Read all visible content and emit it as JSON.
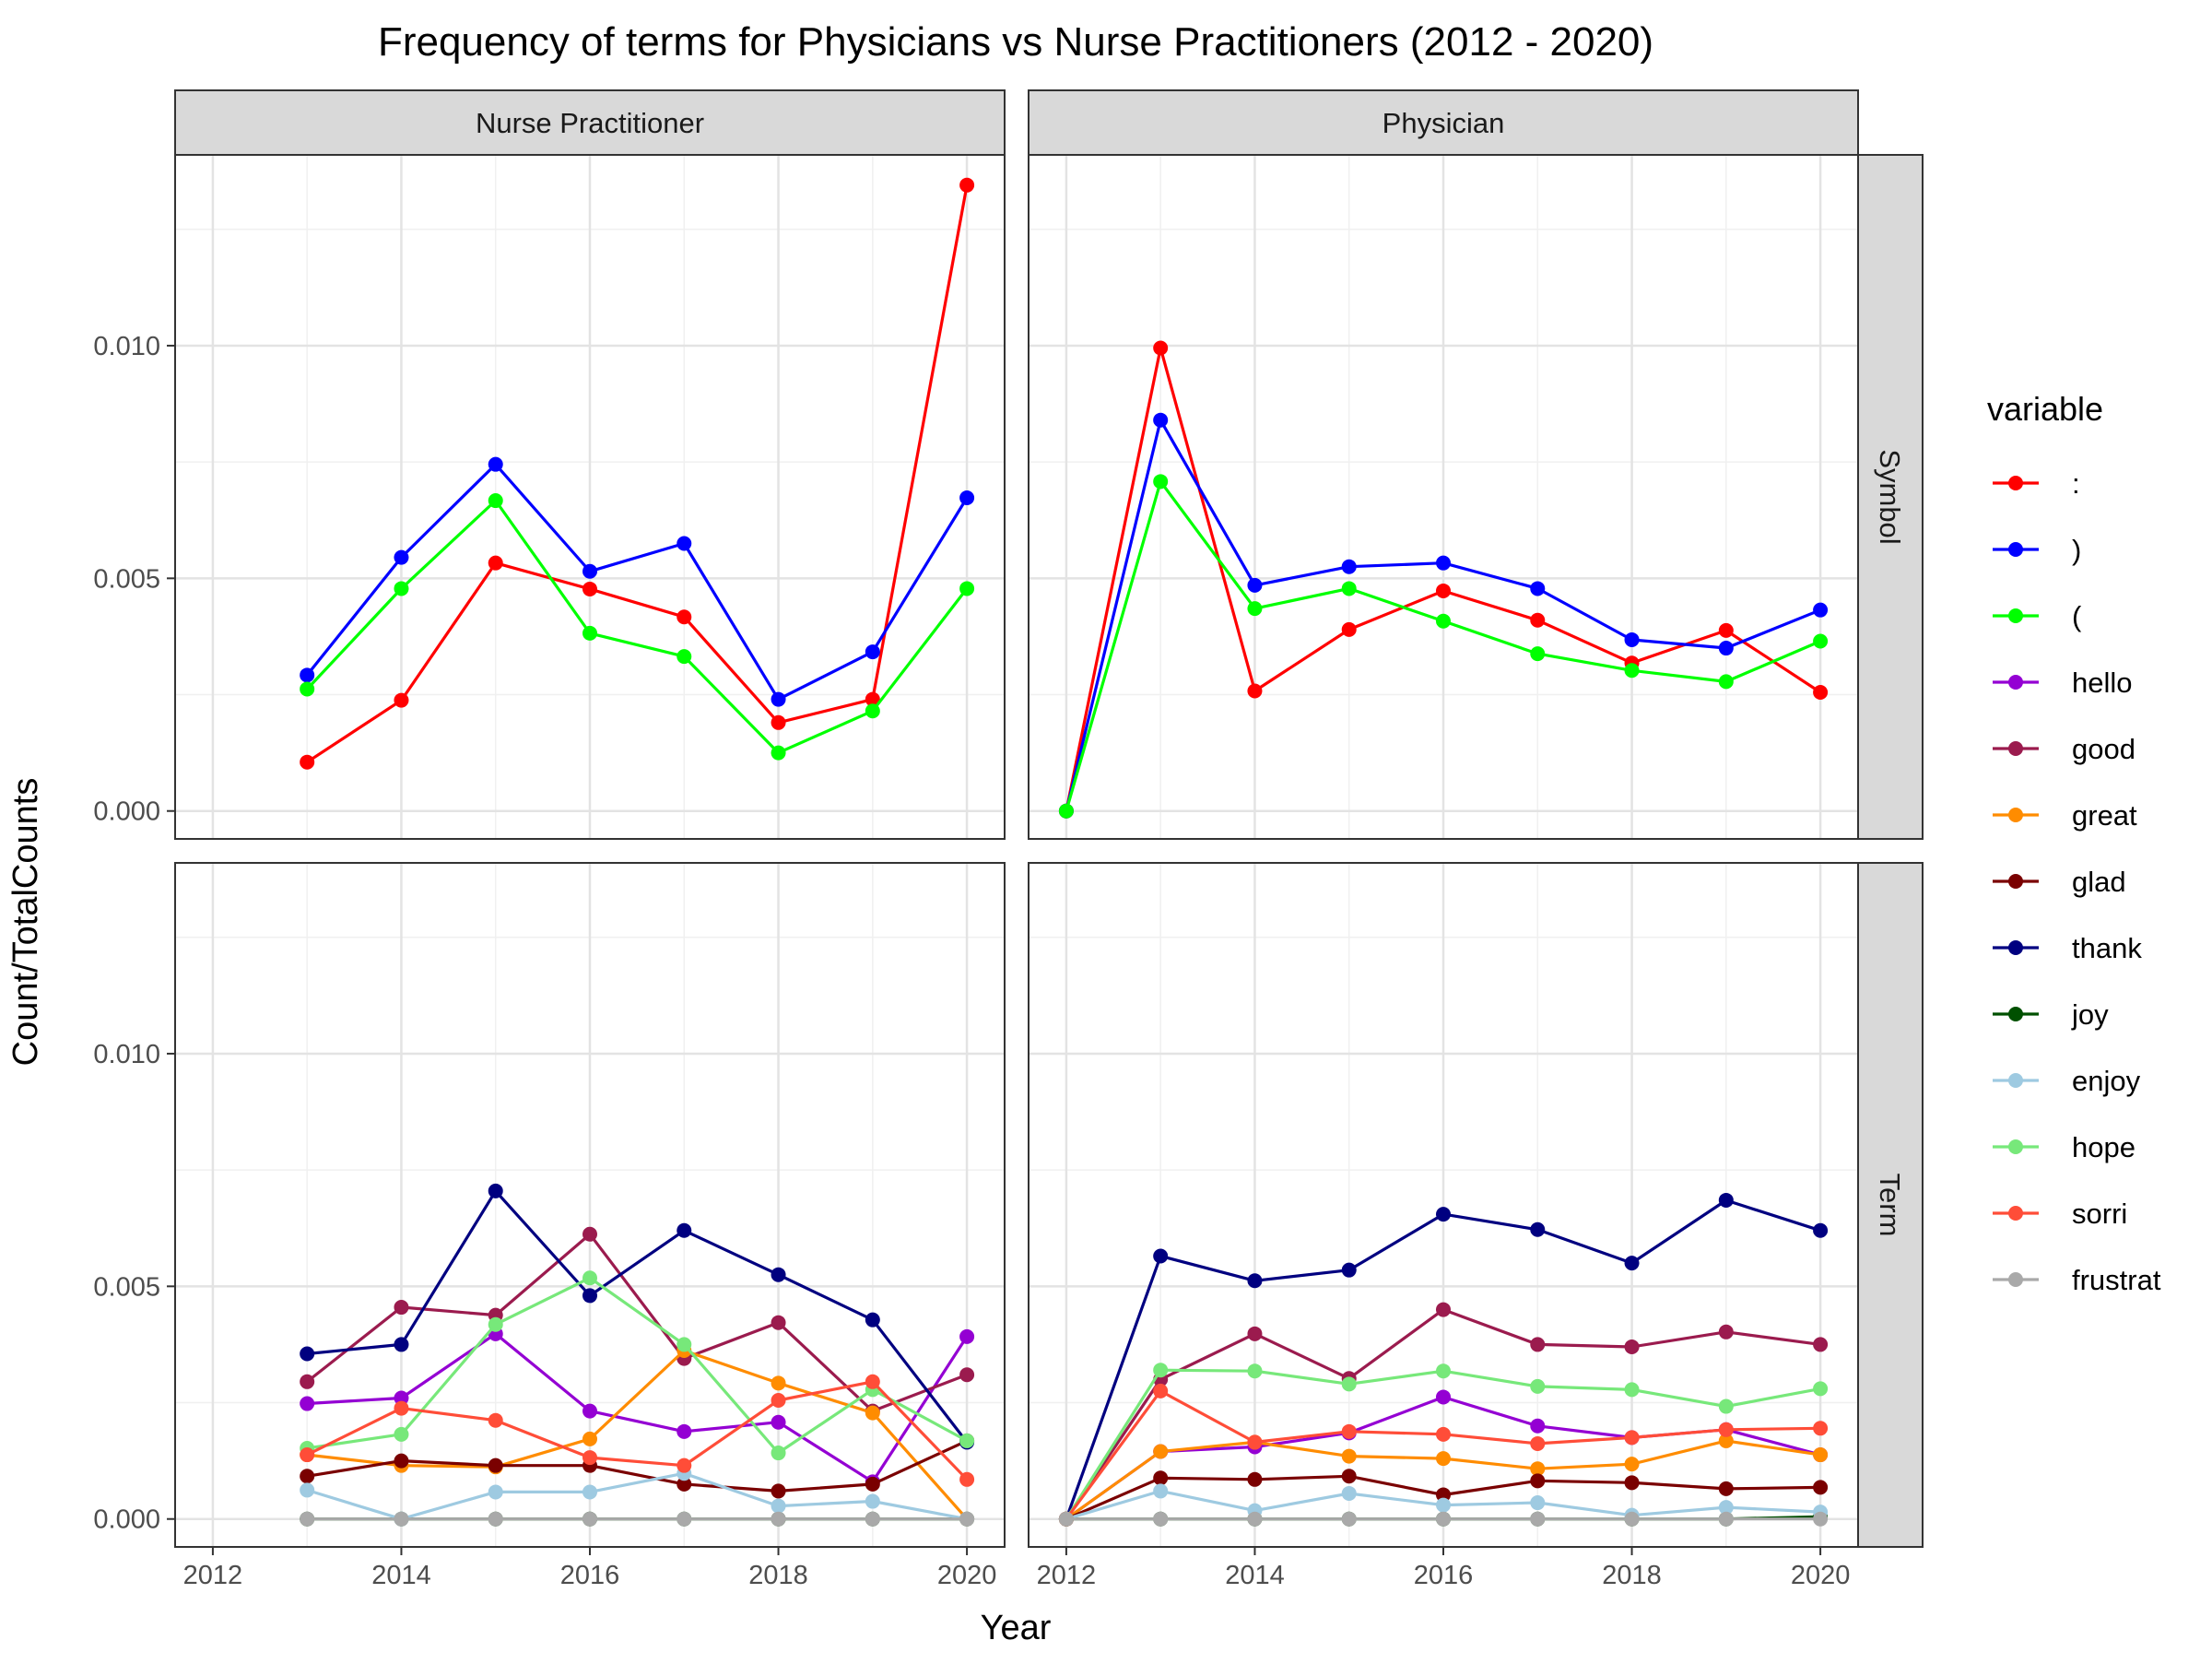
{
  "chart_data": {
    "type": "line",
    "title": "Frequency of terms for Physicians vs Nurse Practitioners (2012 - 2020)",
    "xlabel": "Year",
    "ylabel": "Count/TotalCounts",
    "xlim": [
      2011.6,
      2020.4
    ],
    "ylim": [
      -0.0006,
      0.0141
    ],
    "x_ticks": [
      2012,
      2014,
      2016,
      2018,
      2020
    ],
    "x_tick_labels": [
      "2012",
      "2014",
      "2016",
      "2018",
      "2020"
    ],
    "y_ticks": [
      0,
      0.005,
      0.01
    ],
    "y_tick_labels": [
      "0.000",
      "0.005",
      "0.010"
    ],
    "grid": true,
    "legend": {
      "title": "variable",
      "position": "right"
    },
    "facet_columns": [
      "Nurse Practitioner",
      "Physician"
    ],
    "facet_rows": [
      "Symbol",
      "Term"
    ],
    "series_order": [
      ":",
      ")",
      "(",
      "hello",
      "good",
      "great",
      "glad",
      "thank",
      "joy",
      "enjoy",
      "hope",
      "sorri",
      "frustrat"
    ],
    "colors": {
      ":": "#ff0000",
      ")": "#0000ff",
      "(": "#00ff00",
      "hello": "#9400d3",
      "good": "#9b1b4e",
      "great": "#ff8c00",
      "glad": "#7a0000",
      "thank": "#000080",
      "joy": "#005000",
      "enjoy": "#9ecae1",
      "hope": "#77e87a",
      "sorri": "#ff4d38",
      "frustrat": "#a9a9a9"
    },
    "panels": [
      {
        "col": "Nurse Practitioner",
        "row": "Symbol",
        "series": [
          {
            "name": ":",
            "x": [
              2013,
              2014,
              2015,
              2016,
              2017,
              2018,
              2019,
              2020
            ],
            "values": [
              0.00105,
              0.00238,
              0.00533,
              0.00477,
              0.00417,
              0.0019,
              0.0024,
              0.01345
            ]
          },
          {
            "name": ")",
            "x": [
              2013,
              2014,
              2015,
              2016,
              2017,
              2018,
              2019,
              2020
            ],
            "values": [
              0.00292,
              0.00545,
              0.00745,
              0.00515,
              0.00575,
              0.0024,
              0.00342,
              0.00673
            ]
          },
          {
            "name": "(",
            "x": [
              2013,
              2014,
              2015,
              2016,
              2017,
              2018,
              2019,
              2020
            ],
            "values": [
              0.00262,
              0.00478,
              0.00667,
              0.00382,
              0.00332,
              0.00125,
              0.00215,
              0.00478
            ]
          }
        ]
      },
      {
        "col": "Physician",
        "row": "Symbol",
        "series": [
          {
            "name": ":",
            "x": [
              2012,
              2013,
              2014,
              2015,
              2016,
              2017,
              2018,
              2019,
              2020
            ],
            "values": [
              0,
              0.00995,
              0.00258,
              0.0039,
              0.00473,
              0.0041,
              0.00318,
              0.00388,
              0.00255
            ]
          },
          {
            "name": ")",
            "x": [
              2012,
              2013,
              2014,
              2015,
              2016,
              2017,
              2018,
              2019,
              2020
            ],
            "values": [
              0,
              0.0084,
              0.00485,
              0.00525,
              0.00533,
              0.00478,
              0.00368,
              0.0035,
              0.00432
            ]
          },
          {
            "name": "(",
            "x": [
              2012,
              2013,
              2014,
              2015,
              2016,
              2017,
              2018,
              2019,
              2020
            ],
            "values": [
              0,
              0.00708,
              0.00435,
              0.00478,
              0.00408,
              0.00338,
              0.00302,
              0.00278,
              0.00365
            ]
          }
        ]
      },
      {
        "col": "Nurse Practitioner",
        "row": "Term",
        "series": [
          {
            "name": "hello",
            "x": [
              2013,
              2014,
              2015,
              2016,
              2017,
              2018,
              2019,
              2020
            ],
            "values": [
              0.00248,
              0.0026,
              0.00398,
              0.00232,
              0.00188,
              0.00208,
              0.0008,
              0.00392
            ]
          },
          {
            "name": "good",
            "x": [
              2013,
              2014,
              2015,
              2016,
              2017,
              2018,
              2019,
              2020
            ],
            "values": [
              0.00295,
              0.00455,
              0.00438,
              0.00612,
              0.00345,
              0.00422,
              0.00232,
              0.0031
            ]
          },
          {
            "name": "great",
            "x": [
              2013,
              2014,
              2015,
              2016,
              2017,
              2018,
              2019,
              2020
            ],
            "values": [
              0.00138,
              0.00115,
              0.00112,
              0.00172,
              0.00362,
              0.00292,
              0.00228,
              0
            ]
          },
          {
            "name": "glad",
            "x": [
              2013,
              2014,
              2015,
              2016,
              2017,
              2018,
              2019,
              2020
            ],
            "values": [
              0.00092,
              0.00125,
              0.00115,
              0.00115,
              0.00075,
              0.0006,
              0.00075,
              0.00168
            ]
          },
          {
            "name": "thank",
            "x": [
              2013,
              2014,
              2015,
              2016,
              2017,
              2018,
              2019,
              2020
            ],
            "values": [
              0.00355,
              0.00375,
              0.00705,
              0.0048,
              0.0062,
              0.00525,
              0.00428,
              0.00165
            ]
          },
          {
            "name": "joy",
            "x": [
              2013,
              2014,
              2015,
              2016,
              2017,
              2018,
              2019,
              2020
            ],
            "values": [
              0,
              0,
              0,
              0,
              0,
              0,
              0,
              0
            ]
          },
          {
            "name": "enjoy",
            "x": [
              2013,
              2014,
              2015,
              2016,
              2017,
              2018,
              2019,
              2020
            ],
            "values": [
              0.00062,
              0,
              0.00058,
              0.00058,
              0.00098,
              0.00028,
              0.00038,
              0
            ]
          },
          {
            "name": "hope",
            "x": [
              2013,
              2014,
              2015,
              2016,
              2017,
              2018,
              2019,
              2020
            ],
            "values": [
              0.00152,
              0.00182,
              0.00418,
              0.00518,
              0.00375,
              0.00142,
              0.00278,
              0.00168
            ]
          },
          {
            "name": "sorri",
            "x": [
              2013,
              2014,
              2015,
              2016,
              2017,
              2018,
              2019,
              2020
            ],
            "values": [
              0.00138,
              0.00238,
              0.00212,
              0.00132,
              0.00115,
              0.00255,
              0.00295,
              0.00085
            ]
          },
          {
            "name": "frustrat",
            "x": [
              2013,
              2014,
              2015,
              2016,
              2017,
              2018,
              2019,
              2020
            ],
            "values": [
              0,
              0,
              0,
              0,
              0,
              0,
              0,
              0
            ]
          }
        ]
      },
      {
        "col": "Physician",
        "row": "Term",
        "series": [
          {
            "name": "hello",
            "x": [
              2012,
              2013,
              2014,
              2015,
              2016,
              2017,
              2018,
              2019,
              2020
            ],
            "values": [
              0,
              0.00145,
              0.00155,
              0.00185,
              0.00262,
              0.002,
              0.00175,
              0.00192,
              0.00138
            ]
          },
          {
            "name": "good",
            "x": [
              2012,
              2013,
              2014,
              2015,
              2016,
              2017,
              2018,
              2019,
              2020
            ],
            "values": [
              0,
              0.003,
              0.00398,
              0.00302,
              0.0045,
              0.00375,
              0.0037,
              0.00402,
              0.00375
            ]
          },
          {
            "name": "great",
            "x": [
              2012,
              2013,
              2014,
              2015,
              2016,
              2017,
              2018,
              2019,
              2020
            ],
            "values": [
              0,
              0.00145,
              0.00165,
              0.00135,
              0.0013,
              0.00108,
              0.00118,
              0.00168,
              0.00138
            ]
          },
          {
            "name": "glad",
            "x": [
              2012,
              2013,
              2014,
              2015,
              2016,
              2017,
              2018,
              2019,
              2020
            ],
            "values": [
              0,
              0.00088,
              0.00085,
              0.00092,
              0.00052,
              0.00082,
              0.00078,
              0.00065,
              0.00068
            ]
          },
          {
            "name": "thank",
            "x": [
              2012,
              2013,
              2014,
              2015,
              2016,
              2017,
              2018,
              2019,
              2020
            ],
            "values": [
              0,
              0.00565,
              0.00512,
              0.00535,
              0.00655,
              0.00622,
              0.0055,
              0.00685,
              0.0062
            ]
          },
          {
            "name": "joy",
            "x": [
              2012,
              2013,
              2014,
              2015,
              2016,
              2017,
              2018,
              2019,
              2020
            ],
            "values": [
              0,
              0,
              0,
              0,
              0,
              0,
              0,
              0,
              5e-05
            ]
          },
          {
            "name": "enjoy",
            "x": [
              2012,
              2013,
              2014,
              2015,
              2016,
              2017,
              2018,
              2019,
              2020
            ],
            "values": [
              0,
              0.0006,
              0.00018,
              0.00055,
              0.0003,
              0.00035,
              8e-05,
              0.00025,
              0.00015
            ]
          },
          {
            "name": "hope",
            "x": [
              2012,
              2013,
              2014,
              2015,
              2016,
              2017,
              2018,
              2019,
              2020
            ],
            "values": [
              0,
              0.0032,
              0.00318,
              0.0029,
              0.00318,
              0.00285,
              0.00278,
              0.00242,
              0.0028
            ]
          },
          {
            "name": "sorri",
            "x": [
              2012,
              2013,
              2014,
              2015,
              2016,
              2017,
              2018,
              2019,
              2020
            ],
            "values": [
              0,
              0.00275,
              0.00165,
              0.00188,
              0.00182,
              0.00162,
              0.00175,
              0.00192,
              0.00195
            ]
          },
          {
            "name": "frustrat",
            "x": [
              2012,
              2013,
              2014,
              2015,
              2016,
              2017,
              2018,
              2019,
              2020
            ],
            "values": [
              0,
              0,
              0,
              0,
              0,
              0,
              0,
              0,
              0
            ]
          }
        ]
      }
    ]
  }
}
